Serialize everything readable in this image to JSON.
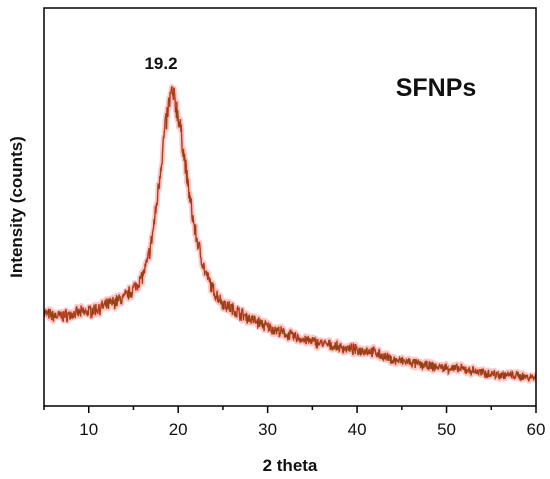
{
  "chart_data": {
    "type": "line",
    "xlabel": "2 theta",
    "ylabel": "Intensity (counts)",
    "xlim": [
      5,
      60
    ],
    "ylim": [
      0,
      100
    ],
    "x_ticks": [
      10,
      20,
      30,
      40,
      50,
      60
    ],
    "y_ticks_labeled": false,
    "grid": false,
    "legend": "none",
    "annotations": [
      {
        "text": "19.2",
        "x": 19.2,
        "y": 100
      },
      {
        "text": "SFNPs",
        "position": "top-right"
      }
    ],
    "series": [
      {
        "color": "#8b4513",
        "highlight_color": "#ff3a3a",
        "x": [
          5,
          6,
          7,
          8,
          9,
          10,
          11,
          12,
          13,
          14,
          15,
          16,
          16.5,
          17,
          17.5,
          18,
          18.5,
          19,
          19.2,
          19.5,
          20,
          20.5,
          21,
          21.5,
          22,
          23,
          24,
          25,
          26,
          27,
          28,
          29,
          30,
          32,
          34,
          36,
          38,
          40,
          41,
          42,
          43,
          44,
          46,
          48,
          50,
          52,
          54,
          56,
          58,
          60
        ],
        "y": [
          25.5,
          24.4,
          24.4,
          24.9,
          25.5,
          25.9,
          26.9,
          28.0,
          29.3,
          30.7,
          33.6,
          37.8,
          41.9,
          49.3,
          60.1,
          73.6,
          87.1,
          96.7,
          99.6,
          98.5,
          92.8,
          82.6,
          70.8,
          60.1,
          51.5,
          39.3,
          32.7,
          28.8,
          26.9,
          25.2,
          23.5,
          22.2,
          20.7,
          18.3,
          16.4,
          15.1,
          13.8,
          12.8,
          12.8,
          12.1,
          10.6,
          9.5,
          8.6,
          7.4,
          6.8,
          6.3,
          5.2,
          4.5,
          4.1,
          3.6
        ]
      }
    ]
  }
}
